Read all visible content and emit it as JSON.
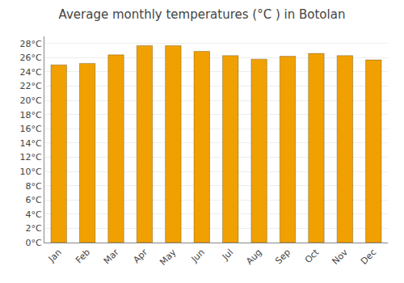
{
  "chart_data": {
    "type": "bar",
    "title": "Average monthly temperatures (°C ) in Botolan",
    "categories": [
      "Jan",
      "Feb",
      "Mar",
      "Apr",
      "May",
      "Jun",
      "Jul",
      "Aug",
      "Sep",
      "Oct",
      "Nov",
      "Dec"
    ],
    "values": [
      25.0,
      25.2,
      26.4,
      27.7,
      27.7,
      26.9,
      26.3,
      25.8,
      26.2,
      26.6,
      26.3,
      25.7
    ],
    "color": "#F0A000",
    "ylim": [
      0,
      29
    ],
    "yticks": [
      {
        "value": 0,
        "label": "0°C"
      },
      {
        "value": 2,
        "label": "2°C"
      },
      {
        "value": 4,
        "label": "4°C"
      },
      {
        "value": 6,
        "label": "6°C"
      },
      {
        "value": 8,
        "label": "8°C"
      },
      {
        "value": 10,
        "label": "10°C"
      },
      {
        "value": 12,
        "label": "12°C"
      },
      {
        "value": 14,
        "label": "14°C"
      },
      {
        "value": 16,
        "label": "16°C"
      },
      {
        "value": 18,
        "label": "18°C"
      },
      {
        "value": 20,
        "label": "20°C"
      },
      {
        "value": 22,
        "label": "22°C"
      },
      {
        "value": 24,
        "label": "24°C"
      },
      {
        "value": 26,
        "label": "26°C"
      },
      {
        "value": 28,
        "label": "28°C"
      }
    ],
    "grid": true
  }
}
